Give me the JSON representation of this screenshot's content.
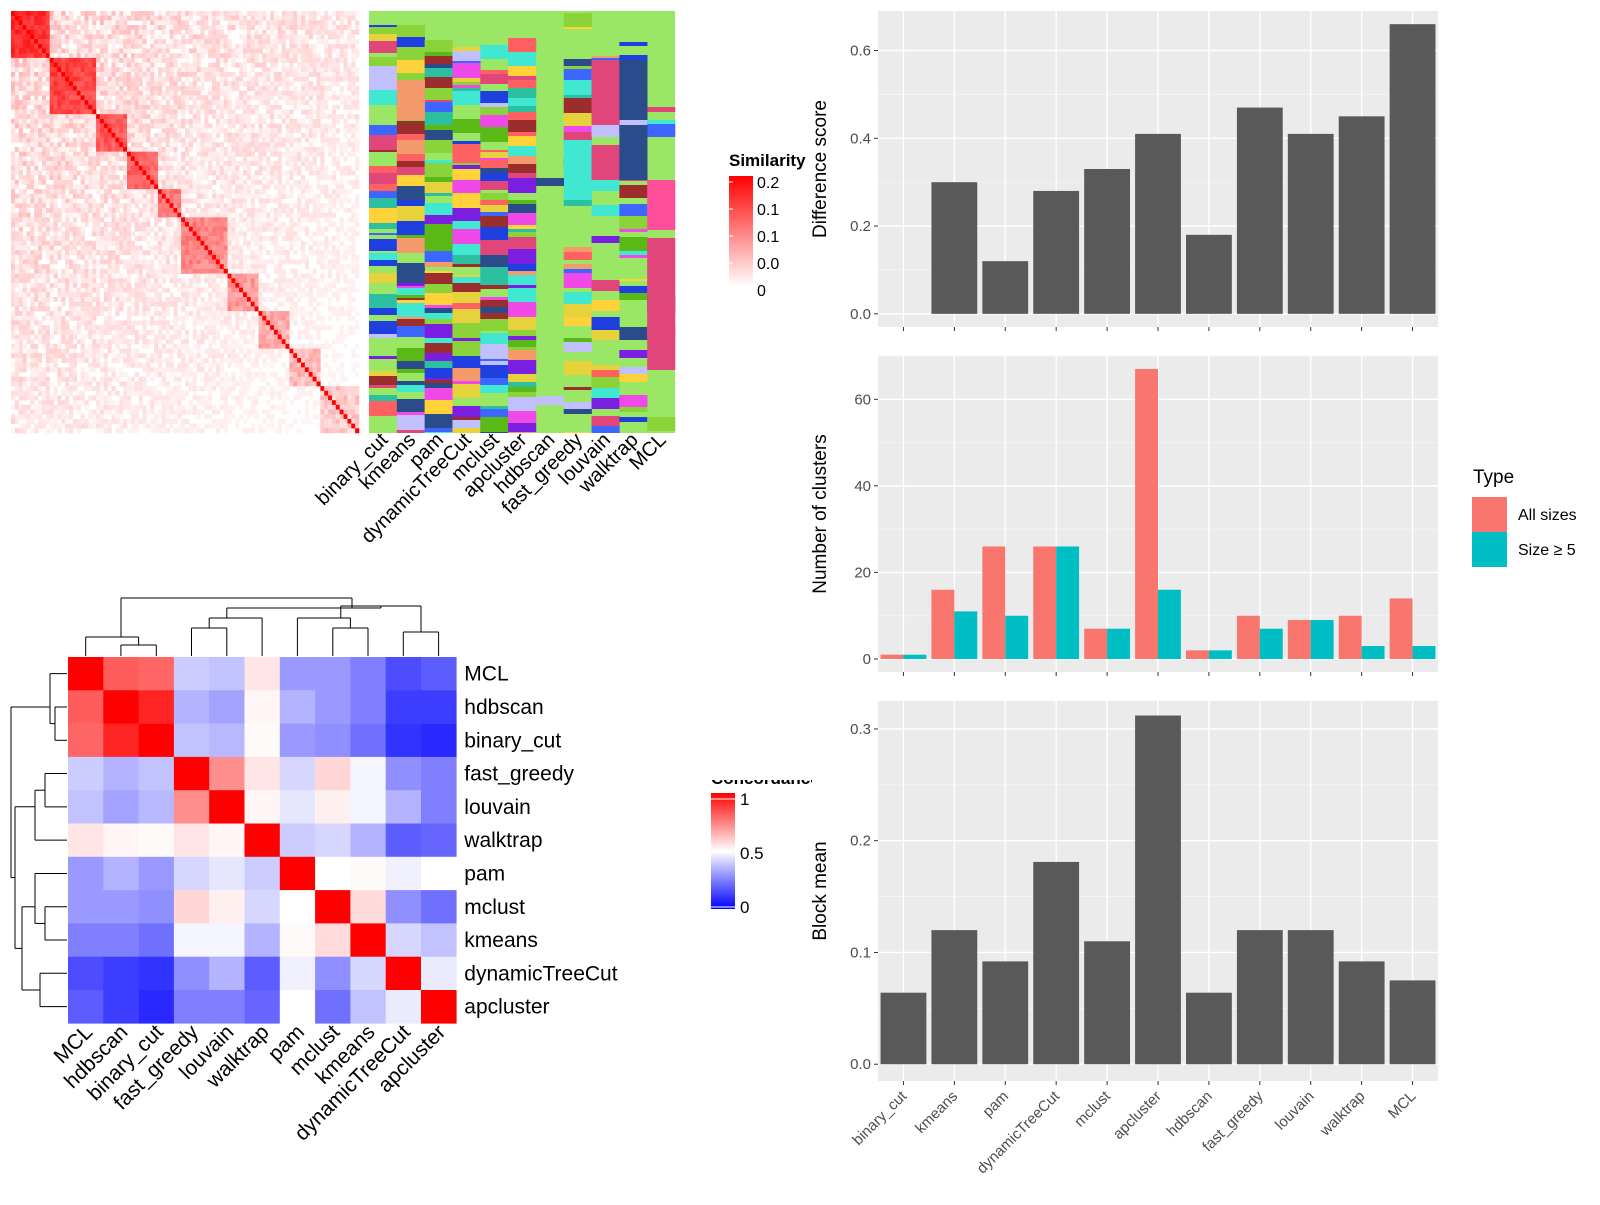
{
  "colors": {
    "red": "#ff0000",
    "blue": "#0000ff",
    "white": "#ffffff",
    "bar_dark": "#595959",
    "panel_bg": "#ebebeb",
    "all_sizes": "#f8766d",
    "size5": "#00bfc4",
    "cluster_bg": "#99e765"
  },
  "chart_data": [
    {
      "id": "similarity_heatmap",
      "type": "heatmap",
      "legend_title": "Similarity",
      "legend_ticks": [
        "0.2",
        "0.1",
        "0.1",
        "0.0",
        "0"
      ],
      "value_range": [
        0,
        0.2
      ],
      "columns": [
        "binary_cut",
        "kmeans",
        "pam",
        "dynamicTreeCut",
        "mclust",
        "apcluster",
        "hdbscan",
        "fast_greedy",
        "louvain",
        "walktrap",
        "MCL"
      ]
    },
    {
      "id": "concordance_heatmap",
      "type": "heatmap",
      "legend_title": "Concordance",
      "legend_ticks": [
        "1",
        "0.5",
        "0"
      ],
      "value_range": [
        0,
        1
      ],
      "rows": [
        "MCL",
        "hdbscan",
        "binary_cut",
        "fast_greedy",
        "louvain",
        "walktrap",
        "pam",
        "mclust",
        "kmeans",
        "dynamicTreeCut",
        "apcluster"
      ],
      "cols": [
        "MCL",
        "hdbscan",
        "binary_cut",
        "fast_greedy",
        "louvain",
        "walktrap",
        "pam",
        "mclust",
        "kmeans",
        "dynamicTreeCut",
        "apcluster"
      ],
      "values": [
        [
          1.0,
          0.82,
          0.8,
          0.4,
          0.38,
          0.55,
          0.3,
          0.3,
          0.25,
          0.15,
          0.18
        ],
        [
          0.82,
          1.0,
          0.93,
          0.35,
          0.32,
          0.52,
          0.35,
          0.3,
          0.25,
          0.12,
          0.12
        ],
        [
          0.8,
          0.93,
          1.0,
          0.38,
          0.36,
          0.51,
          0.3,
          0.28,
          0.22,
          0.1,
          0.08
        ],
        [
          0.4,
          0.35,
          0.38,
          1.0,
          0.72,
          0.55,
          0.42,
          0.58,
          0.48,
          0.28,
          0.25
        ],
        [
          0.38,
          0.32,
          0.36,
          0.72,
          1.0,
          0.52,
          0.45,
          0.53,
          0.48,
          0.35,
          0.25
        ],
        [
          0.55,
          0.52,
          0.51,
          0.55,
          0.52,
          1.0,
          0.4,
          0.42,
          0.35,
          0.18,
          0.2
        ],
        [
          0.3,
          0.35,
          0.3,
          0.42,
          0.45,
          0.4,
          1.0,
          0.5,
          0.51,
          0.47,
          0.5
        ],
        [
          0.3,
          0.3,
          0.28,
          0.58,
          0.53,
          0.42,
          0.5,
          1.0,
          0.57,
          0.28,
          0.22
        ],
        [
          0.25,
          0.25,
          0.22,
          0.48,
          0.48,
          0.35,
          0.51,
          0.57,
          1.0,
          0.42,
          0.38
        ],
        [
          0.15,
          0.12,
          0.1,
          0.28,
          0.35,
          0.18,
          0.47,
          0.28,
          0.42,
          1.0,
          0.46
        ],
        [
          0.18,
          0.12,
          0.08,
          0.25,
          0.25,
          0.2,
          0.5,
          0.22,
          0.38,
          0.46,
          1.0
        ]
      ]
    },
    {
      "id": "difference_score",
      "type": "bar",
      "categories": [
        "binary_cut",
        "kmeans",
        "pam",
        "dynamicTreeCut",
        "mclust",
        "apcluster",
        "hdbscan",
        "fast_greedy",
        "louvain",
        "walktrap",
        "MCL"
      ],
      "values": [
        0,
        0.3,
        0.12,
        0.28,
        0.33,
        0.41,
        0.18,
        0.47,
        0.41,
        0.45,
        0.66
      ],
      "ylabel": "Difference score",
      "ylim": [
        -0.03,
        0.69
      ],
      "yticks": [
        0.0,
        0.2,
        0.4,
        0.6
      ],
      "ytick_labels": [
        "0.0",
        "0.2",
        "0.4",
        "0.6"
      ],
      "grid": true
    },
    {
      "id": "number_of_clusters",
      "type": "bar",
      "categories": [
        "binary_cut",
        "kmeans",
        "pam",
        "dynamicTreeCut",
        "mclust",
        "apcluster",
        "hdbscan",
        "fast_greedy",
        "louvain",
        "walktrap",
        "MCL"
      ],
      "series": [
        {
          "name": "All sizes",
          "values": [
            1,
            16,
            26,
            26,
            7,
            67,
            2,
            10,
            9,
            10,
            14
          ]
        },
        {
          "name": "Size ≥ 5",
          "values": [
            1,
            11,
            10,
            26,
            7,
            16,
            2,
            7,
            9,
            3,
            3
          ]
        }
      ],
      "ylabel": "Number of clusters",
      "ylim": [
        -3,
        70
      ],
      "yticks": [
        0,
        20,
        40,
        60
      ],
      "ytick_labels": [
        "0",
        "20",
        "40",
        "60"
      ],
      "legend_title": "Type",
      "legend_position": "right",
      "grid": true
    },
    {
      "id": "block_mean",
      "type": "bar",
      "categories": [
        "binary_cut",
        "kmeans",
        "pam",
        "dynamicTreeCut",
        "mclust",
        "apcluster",
        "hdbscan",
        "fast_greedy",
        "louvain",
        "walktrap",
        "MCL"
      ],
      "values": [
        0.064,
        0.12,
        0.092,
        0.181,
        0.11,
        0.312,
        0.064,
        0.12,
        0.12,
        0.092,
        0.075
      ],
      "ylabel": "Block mean",
      "ylim": [
        -0.015,
        0.325
      ],
      "yticks": [
        0.0,
        0.1,
        0.2,
        0.3
      ],
      "ytick_labels": [
        "0.0",
        "0.1",
        "0.2",
        "0.3"
      ],
      "grid": true
    }
  ]
}
